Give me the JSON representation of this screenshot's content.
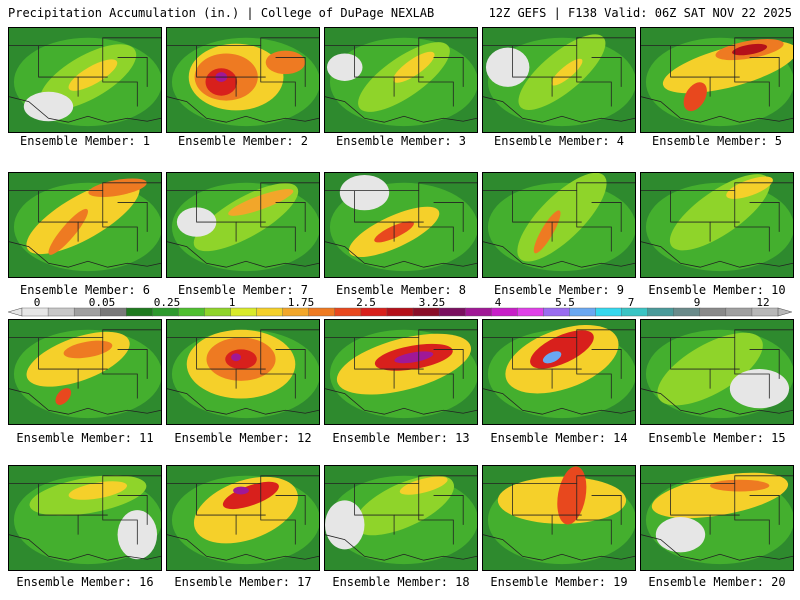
{
  "header": {
    "left": "Precipitation Accumulation (in.) | College of DuPage NEXLAB",
    "right": "12Z GEFS | F138 Valid: 06Z SAT NOV 22 2025"
  },
  "colorbar": {
    "labels": [
      "0",
      "0.05",
      "0.25",
      "1",
      "1.75",
      "2.5",
      "3.25",
      "4",
      "5.5",
      "7",
      "9",
      "12"
    ],
    "colors": [
      "#e6e6e6",
      "#c8c8c8",
      "#a0a0a0",
      "#7a7a7a",
      "#1f7a1f",
      "#2e9a2e",
      "#4fbf2f",
      "#8fd42a",
      "#d9ea2a",
      "#f5d02a",
      "#f2a62a",
      "#ee7a22",
      "#e8481e",
      "#d8201c",
      "#b4101a",
      "#8a0e28",
      "#7a1060",
      "#a01896",
      "#c81ec8",
      "#e040e8",
      "#9a6cf0",
      "#6aa8f2",
      "#35d8ee",
      "#3ac4c4",
      "#4a9a9a",
      "#6a8a8a",
      "#8a8a8a",
      "#a0a0a0",
      "#b8b8b8"
    ]
  },
  "panels": [
    {
      "caption": "Ensemble Member: 1"
    },
    {
      "caption": "Ensemble Member: 2"
    },
    {
      "caption": "Ensemble Member: 3"
    },
    {
      "caption": "Ensemble Member: 4"
    },
    {
      "caption": "Ensemble Member: 5"
    },
    {
      "caption": "Ensemble Member: 6"
    },
    {
      "caption": "Ensemble Member: 7"
    },
    {
      "caption": "Ensemble Member: 8"
    },
    {
      "caption": "Ensemble Member: 9"
    },
    {
      "caption": "Ensemble Member: 10"
    },
    {
      "caption": "Ensemble Member: 11"
    },
    {
      "caption": "Ensemble Member: 12"
    },
    {
      "caption": "Ensemble Member: 13"
    },
    {
      "caption": "Ensemble Member: 14"
    },
    {
      "caption": "Ensemble Member: 15"
    },
    {
      "caption": "Ensemble Member: 16"
    },
    {
      "caption": "Ensemble Member: 17"
    },
    {
      "caption": "Ensemble Member: 18"
    },
    {
      "caption": "Ensemble Member: 19"
    },
    {
      "caption": "Ensemble Member: 20"
    }
  ]
}
